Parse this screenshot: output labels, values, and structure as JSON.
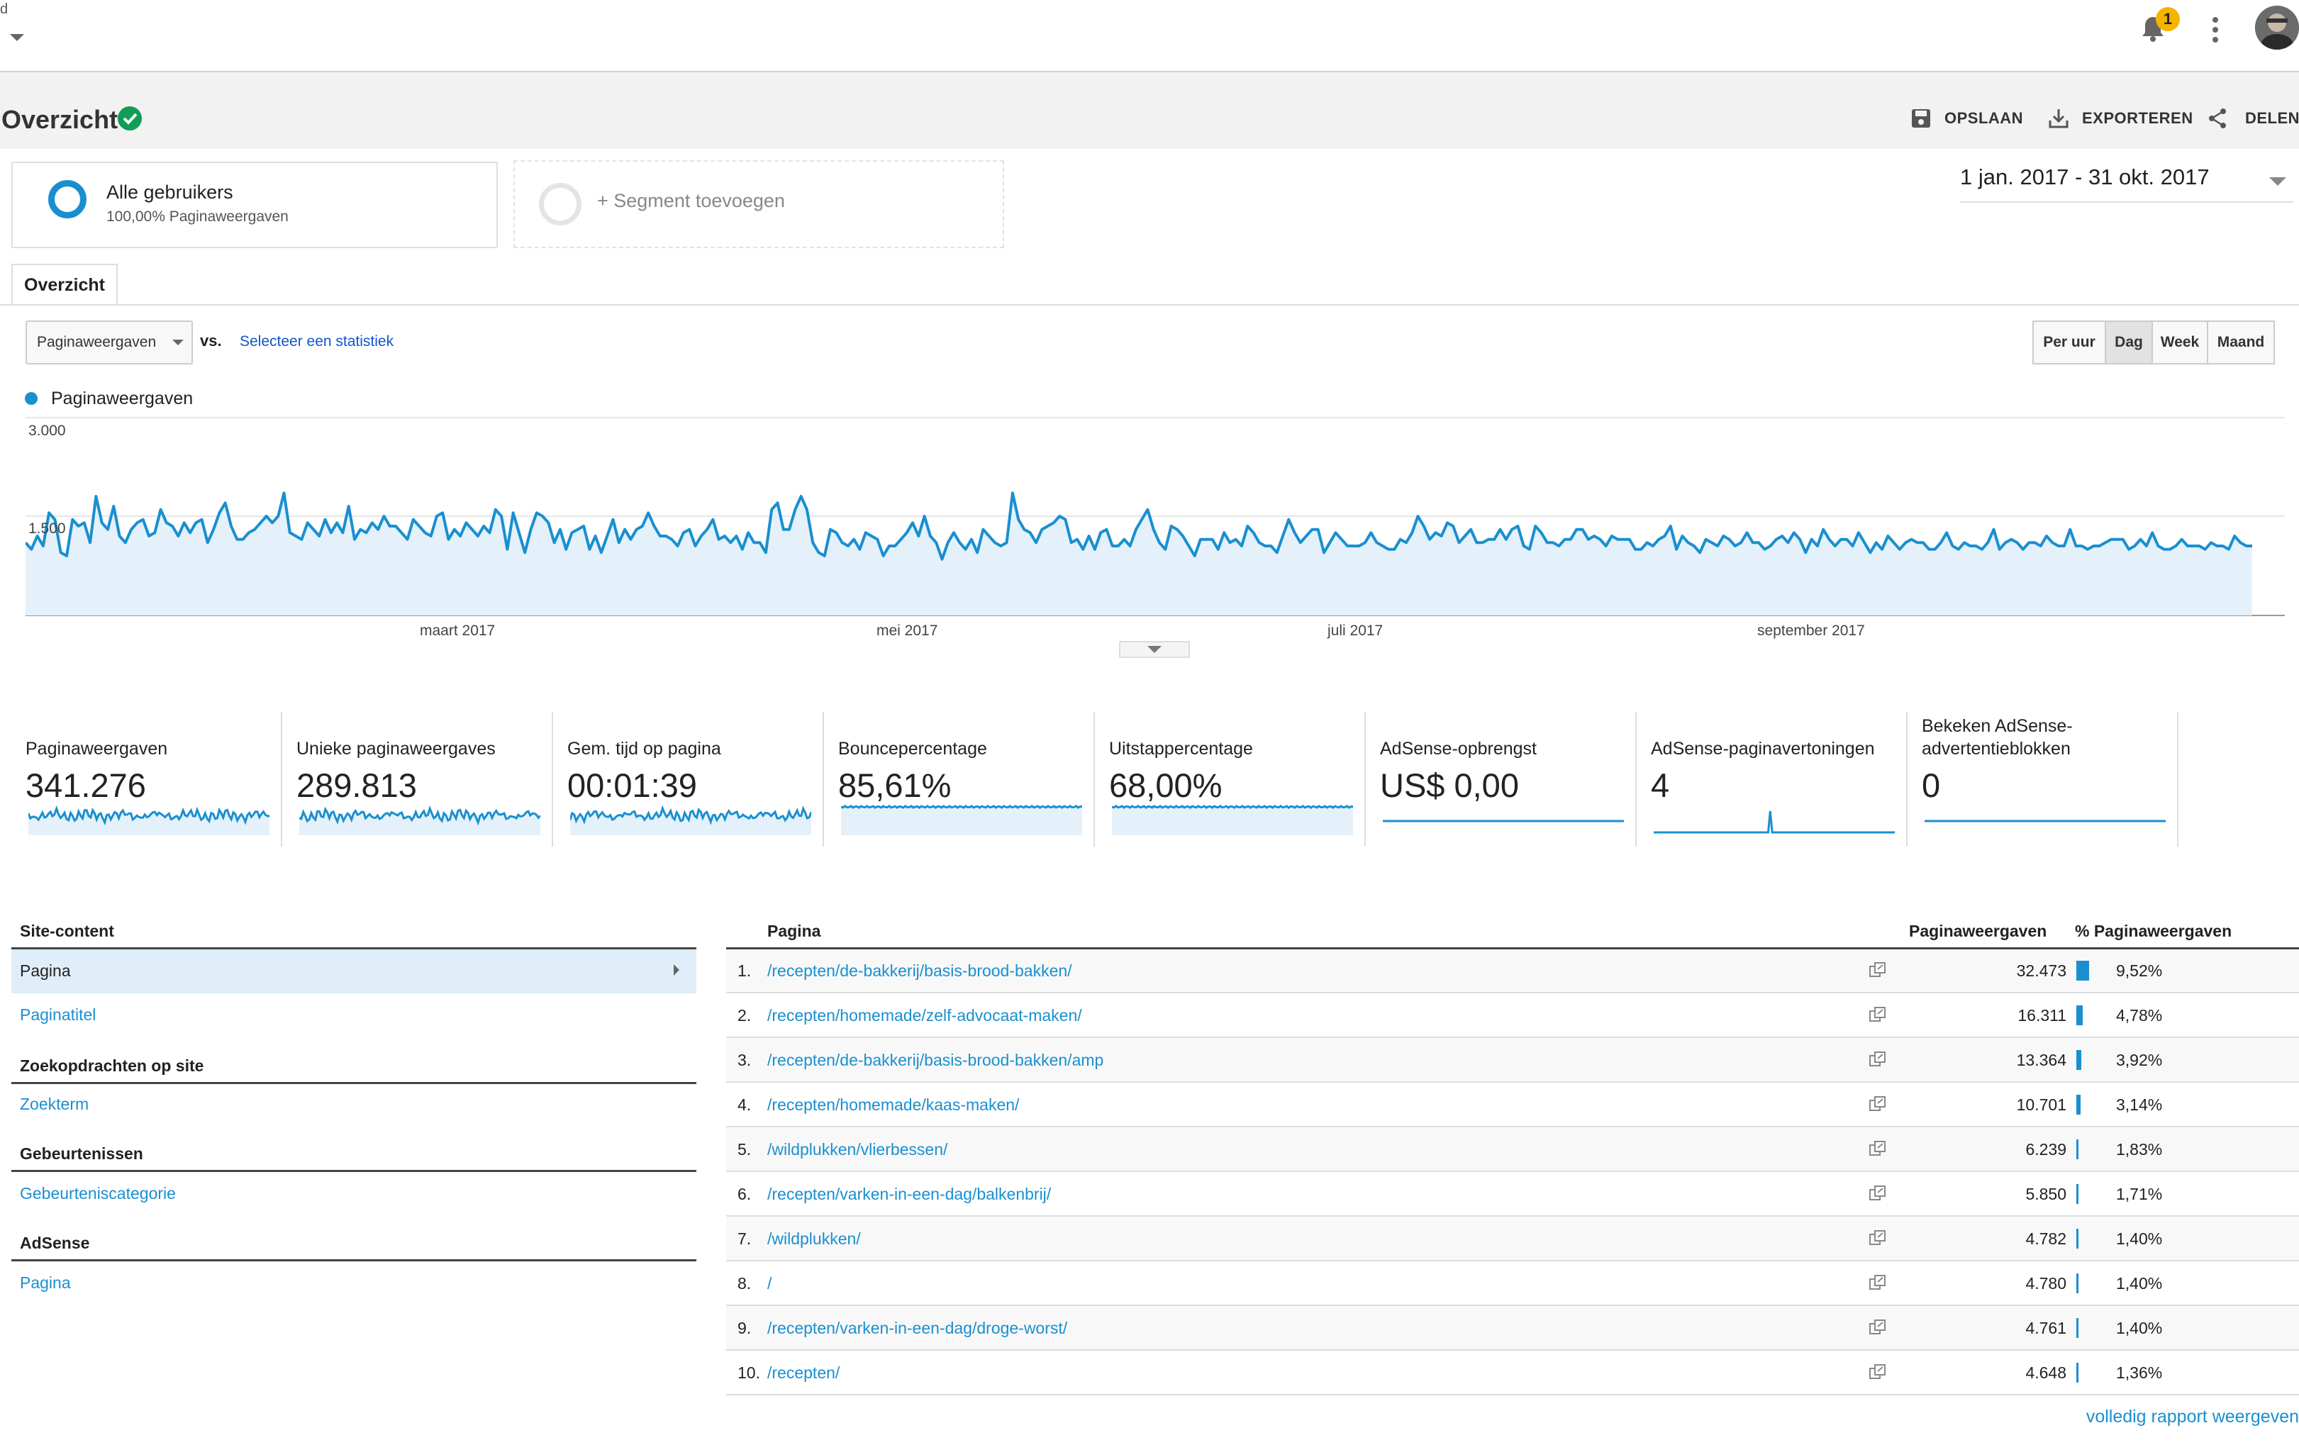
{
  "topbar": {
    "account_letter": "d",
    "notification_count": "1"
  },
  "header": {
    "title": "Overzicht",
    "actions": {
      "save": "OPSLAAN",
      "export": "EXPORTEREN",
      "share": "DELEN"
    }
  },
  "segments": {
    "primary": {
      "title": "Alle gebruikers",
      "subtitle": "100,00% Paginaweergaven"
    },
    "add": "+ Segment toevoegen"
  },
  "date_range": "1 jan. 2017 - 31 okt. 2017",
  "tab": "Overzicht",
  "controls": {
    "metric": "Paginaweergaven",
    "vs": "vs.",
    "compare": "Selecteer een statistiek",
    "periods": [
      "Per uur",
      "Dag",
      "Week",
      "Maand"
    ],
    "active_period": "Dag"
  },
  "chart_data": {
    "type": "area",
    "series": [
      {
        "name": "Paginaweergaven",
        "values": [
          1100,
          1000,
          1200,
          1050,
          1550,
          1450,
          950,
          900,
          1450,
          1350,
          1400,
          1100,
          1800,
          1400,
          1300,
          1650,
          1200,
          1100,
          1300,
          1400,
          1450,
          1200,
          1250,
          1600,
          1400,
          1350,
          1200,
          1400,
          1250,
          1400,
          1450,
          1100,
          1300,
          1550,
          1700,
          1350,
          1150,
          1150,
          1250,
          1300,
          1400,
          1500,
          1400,
          1500,
          1850,
          1250,
          1200,
          1150,
          1400,
          1300,
          1200,
          1450,
          1250,
          1400,
          1250,
          1650,
          1150,
          1300,
          1250,
          1400,
          1300,
          1500,
          1350,
          1350,
          1250,
          1150,
          1450,
          1350,
          1250,
          1200,
          1500,
          1550,
          1150,
          1300,
          1200,
          1400,
          1300,
          1200,
          1350,
          1250,
          1600,
          1500,
          1000,
          1550,
          1250,
          950,
          1300,
          1550,
          1500,
          1400,
          1100,
          1300,
          1000,
          1250,
          1300,
          1350,
          1000,
          1200,
          950,
          1200,
          1450,
          1100,
          1300,
          1150,
          1300,
          1350,
          1550,
          1350,
          1200,
          1200,
          1150,
          1050,
          1250,
          1300,
          1050,
          1200,
          1300,
          1450,
          1150,
          1200,
          1100,
          1200,
          1000,
          1250,
          1100,
          1100,
          950,
          1600,
          1700,
          1300,
          1300,
          1600,
          1800,
          1600,
          1100,
          950,
          900,
          1300,
          1250,
          1100,
          1050,
          1150,
          1000,
          1250,
          1200,
          1150,
          900,
          1050,
          1050,
          1150,
          1250,
          1400,
          1200,
          1500,
          1200,
          1100,
          850,
          1100,
          1250,
          1100,
          1000,
          1150,
          950,
          1300,
          1200,
          1100,
          1050,
          1100,
          1850,
          1450,
          1300,
          1250,
          1100,
          1300,
          1350,
          1400,
          1500,
          1450,
          1100,
          1150,
          1000,
          1200,
          1000,
          1250,
          1300,
          1050,
          1050,
          1150,
          1050,
          1300,
          1450,
          1600,
          1300,
          1100,
          1000,
          1350,
          1300,
          1200,
          1050,
          900,
          1150,
          1150,
          1150,
          1000,
          1250,
          1100,
          1150,
          1050,
          1350,
          1250,
          1100,
          1050,
          1050,
          950,
          1200,
          1450,
          1250,
          1100,
          1200,
          1300,
          1300,
          950,
          1100,
          1250,
          1150,
          1050,
          1050,
          1050,
          1100,
          1250,
          1100,
          1050,
          1000,
          1000,
          1150,
          1100,
          1250,
          1500,
          1350,
          1150,
          1250,
          1200,
          1400,
          1350,
          1100,
          1200,
          1300,
          1100,
          1100,
          1150,
          1150,
          1300,
          1150,
          1300,
          1350,
          1050,
          1000,
          1350,
          1250,
          1100,
          1100,
          1050,
          1150,
          1150,
          1300,
          1300,
          1150,
          1200,
          1150,
          1050,
          1200,
          1150,
          1150,
          1150,
          1000,
          1000,
          1100,
          1050,
          1150,
          1200,
          1350,
          1000,
          1200,
          1100,
          1050,
          950,
          1150,
          1100,
          1050,
          1200,
          1150,
          1050,
          1100,
          1250,
          1100,
          1100,
          1000,
          1050,
          1150,
          1200,
          1100,
          1250,
          1150,
          950,
          1150,
          1050,
          1300,
          1150,
          1050,
          1150,
          1150,
          1050,
          1250,
          1100,
          950,
          1100,
          1000,
          1200,
          1100,
          1000,
          1100,
          1150,
          1100,
          1100,
          1000,
          1000,
          1100,
          1250,
          1050,
          1000,
          1100,
          1050,
          1050,
          1000,
          1100,
          1300,
          1000,
          1100,
          1150,
          1100,
          1000,
          1100,
          1100,
          1050,
          1200,
          1100,
          1050,
          1050,
          1300,
          1050,
          1050,
          1000,
          1050,
          1050,
          1100,
          1150,
          1150,
          1150,
          1000,
          1050,
          1150,
          1050,
          1250,
          1050,
          1000,
          1000,
          1050,
          1150,
          1050,
          1050,
          1050,
          1000,
          1100,
          1050,
          1050,
          1000,
          1200,
          1100,
          1050,
          1050
        ]
      }
    ],
    "y_ticks": [
      "3.000",
      "1.500"
    ],
    "x_ticks": [
      "maart 2017",
      "mei 2017",
      "juli 2017",
      "september 2017"
    ],
    "ylim": [
      0,
      3000
    ],
    "grid": true,
    "legend": "top-left"
  },
  "scorecards": [
    {
      "label": "Paginaweergaven",
      "value": "341.276",
      "spark": "noisy"
    },
    {
      "label": "Unieke paginaweergaves",
      "value": "289.813",
      "spark": "noisy"
    },
    {
      "label": "Gem. tijd op pagina",
      "value": "00:01:39",
      "spark": "noisy"
    },
    {
      "label": "Bouncepercentage",
      "value": "85,61%",
      "spark": "flat"
    },
    {
      "label": "Uitstappercentage",
      "value": "68,00%",
      "spark": "flat"
    },
    {
      "label": "AdSense-opbrengst",
      "value": "US$ 0,00",
      "spark": "line"
    },
    {
      "label": "AdSense-paginavertoningen",
      "value": "4",
      "spark": "spike"
    },
    {
      "label": "Bekeken AdSense-advertentieblokken",
      "value": "0",
      "spark": "line"
    }
  ],
  "explorer": {
    "sections": [
      {
        "heading": "Site-content",
        "items": [
          "Pagina",
          "Paginatitel"
        ]
      },
      {
        "heading": "Zoekopdrachten op site",
        "items": [
          "Zoekterm"
        ]
      },
      {
        "heading": "Gebeurtenissen",
        "items": [
          "Gebeurteniscategorie"
        ]
      },
      {
        "heading": "AdSense",
        "items": [
          "Pagina"
        ]
      }
    ],
    "selected": "Pagina"
  },
  "table": {
    "columns": [
      "Pagina",
      "Paginaweergaven",
      "% Paginaweergaven"
    ],
    "rows": [
      {
        "rank": "1.",
        "page": "/recepten/de-bakkerij/basis-brood-bakken/",
        "views": "32.473",
        "pct": "9,52%",
        "pct_value": 9.52
      },
      {
        "rank": "2.",
        "page": "/recepten/homemade/zelf-advocaat-maken/",
        "views": "16.311",
        "pct": "4,78%",
        "pct_value": 4.78
      },
      {
        "rank": "3.",
        "page": "/recepten/de-bakkerij/basis-brood-bakken/amp",
        "views": "13.364",
        "pct": "3,92%",
        "pct_value": 3.92
      },
      {
        "rank": "4.",
        "page": "/recepten/homemade/kaas-maken/",
        "views": "10.701",
        "pct": "3,14%",
        "pct_value": 3.14
      },
      {
        "rank": "5.",
        "page": "/wildplukken/vlierbessen/",
        "views": "6.239",
        "pct": "1,83%",
        "pct_value": 1.83
      },
      {
        "rank": "6.",
        "page": "/recepten/varken-in-een-dag/balkenbrij/",
        "views": "5.850",
        "pct": "1,71%",
        "pct_value": 1.71
      },
      {
        "rank": "7.",
        "page": "/wildplukken/",
        "views": "4.782",
        "pct": "1,40%",
        "pct_value": 1.4
      },
      {
        "rank": "8.",
        "page": "/",
        "views": "4.780",
        "pct": "1,40%",
        "pct_value": 1.4
      },
      {
        "rank": "9.",
        "page": "/recepten/varken-in-een-dag/droge-worst/",
        "views": "4.761",
        "pct": "1,40%",
        "pct_value": 1.4
      },
      {
        "rank": "10.",
        "page": "/recepten/",
        "views": "4.648",
        "pct": "1,36%",
        "pct_value": 1.36
      }
    ],
    "full_report": "volledig rapport weergeven"
  },
  "colors": {
    "accent": "#1a8fd0",
    "fill": "#e4f1fa",
    "verified": "#0f9d58",
    "badge": "#f4b400"
  }
}
